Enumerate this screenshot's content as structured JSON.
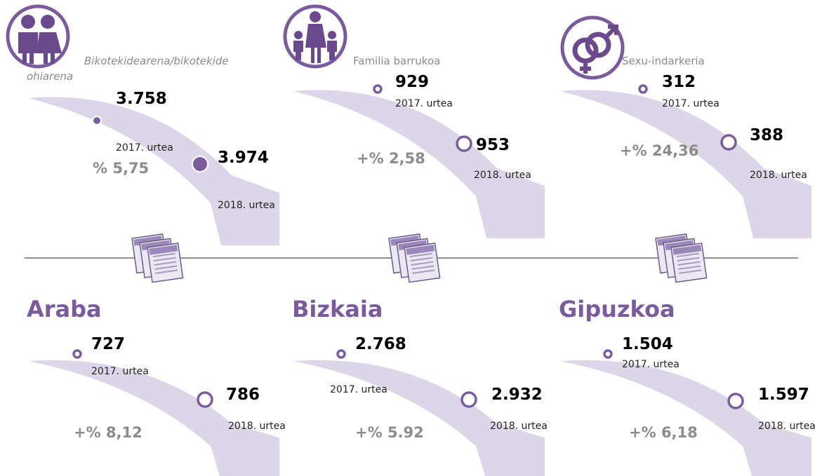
{
  "panels": [
    {
      "label": "Bikotekidearena/bikotekide ohiarena",
      "value_2017": "3.758",
      "year_2017": "2017. urtea",
      "value_2018": "3.974",
      "year_2018": "2018. urtea",
      "change": "% 5,75"
    },
    {
      "label": "Familia barrukoa",
      "value_2017": "929",
      "year_2017": "2017. urtea",
      "value_2018": "953",
      "year_2018": "2018. urtea",
      "change": "+% 2,58"
    },
    {
      "label": "Sexu-indarkeria",
      "value_2017": "312",
      "year_2017": "2017. urtea",
      "value_2018": "388",
      "year_2018": "2018. urtea",
      "change": "+% 24,36"
    }
  ],
  "regions": [
    {
      "name": "Araba",
      "value_2017": "727",
      "year_2017": "2017. urtea",
      "value_2018": "786",
      "year_2018": "2018. urtea",
      "change": "+% 8,12"
    },
    {
      "name": "Bizkaia",
      "value_2017": "2.768",
      "year_2017": "2017. urtea",
      "value_2018": "2.932",
      "year_2018": "2018. urtea",
      "change": "+% 5.92"
    },
    {
      "name": "Gipuzkoa",
      "value_2017": "1.504",
      "year_2017": "2017. urtea",
      "value_2018": "1.597",
      "year_2018": "2018. urtea",
      "change": "+% 6,18"
    }
  ]
}
